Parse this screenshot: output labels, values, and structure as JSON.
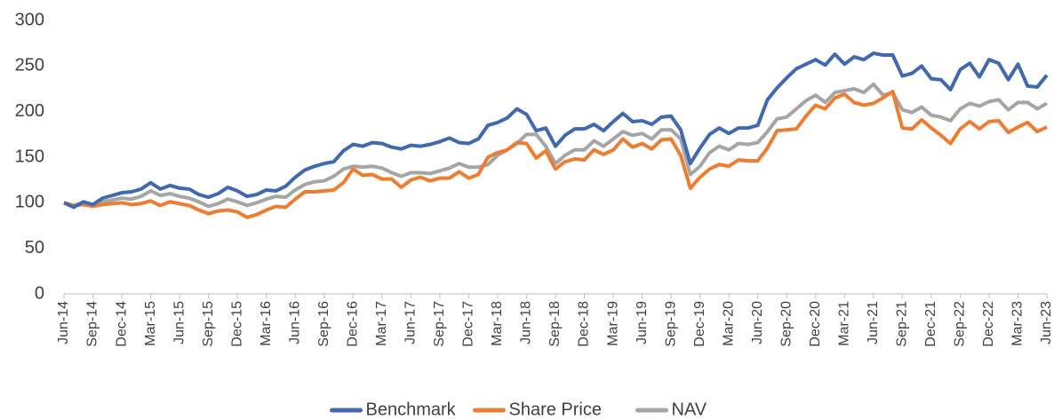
{
  "chart_data": {
    "type": "line",
    "categories": [
      "Jun-14",
      null,
      null,
      "Sep-14",
      null,
      null,
      "Dec-14",
      null,
      null,
      "Mar-15",
      null,
      null,
      "Jun-15",
      null,
      null,
      "Sep-15",
      null,
      null,
      "Dec-15",
      null,
      null,
      "Mar-16",
      null,
      null,
      "Jun-16",
      null,
      null,
      "Sep-16",
      null,
      null,
      "Dec-16",
      null,
      null,
      "Mar-17",
      null,
      null,
      "Jun-17",
      null,
      null,
      "Sep-17",
      null,
      null,
      "Dec-17",
      null,
      null,
      "Mar-18",
      null,
      null,
      "Jun-18",
      null,
      null,
      "Sep-18",
      null,
      null,
      "Dec-18",
      null,
      null,
      "Mar-19",
      null,
      null,
      "Jun-19",
      null,
      null,
      "Sep-19",
      null,
      null,
      "Dec-19",
      null,
      null,
      "Mar-20",
      null,
      null,
      "Jun-20",
      null,
      null,
      "Sep-20",
      null,
      null,
      "Dec-20",
      null,
      null,
      "Mar-21",
      null,
      null,
      "Jun-21",
      null,
      null,
      "Sep-21",
      null,
      null,
      "Dec-21",
      null,
      null,
      "Sep-22",
      null,
      null,
      "Dec-22",
      null,
      null,
      "Mar-23",
      null,
      null,
      "Jun-23"
    ],
    "series": [
      {
        "name": "Benchmark",
        "color": "#4169b0",
        "values": [
          100,
          95,
          101,
          98,
          105,
          108,
          111,
          112,
          115,
          122,
          115,
          119,
          116,
          115,
          109,
          106,
          110,
          117,
          113,
          107,
          109,
          114,
          113,
          118,
          128,
          136,
          140,
          143,
          145,
          157,
          164,
          162,
          166,
          165,
          161,
          159,
          163,
          162,
          164,
          167,
          171,
          166,
          165,
          170,
          185,
          188,
          193,
          203,
          197,
          179,
          182,
          162,
          174,
          181,
          181,
          186,
          179,
          189,
          198,
          189,
          190,
          186,
          194,
          195,
          180,
          143,
          160,
          175,
          182,
          176,
          182,
          182,
          185,
          213,
          226,
          237,
          247,
          252,
          257,
          251,
          263,
          252,
          260,
          257,
          264,
          262,
          262,
          239,
          242,
          250,
          236,
          235,
          224,
          246,
          253,
          238,
          257,
          253,
          235,
          252,
          228,
          227,
          240
        ]
      },
      {
        "name": "Share Price",
        "color": "#ed7d31",
        "values": [
          100,
          97,
          98,
          96,
          98,
          99,
          100,
          98,
          99,
          102,
          97,
          101,
          99,
          97,
          92,
          88,
          91,
          92,
          90,
          84,
          87,
          92,
          96,
          95,
          104,
          112,
          112,
          113,
          114,
          122,
          137,
          130,
          131,
          126,
          126,
          117,
          125,
          128,
          124,
          127,
          127,
          134,
          127,
          131,
          150,
          155,
          158,
          166,
          165,
          149,
          157,
          137,
          145,
          148,
          147,
          158,
          153,
          158,
          170,
          161,
          165,
          159,
          169,
          170,
          152,
          116,
          128,
          137,
          142,
          140,
          147,
          146,
          146,
          160,
          179,
          180,
          181,
          195,
          207,
          203,
          215,
          219,
          210,
          207,
          209,
          215,
          222,
          182,
          181,
          191,
          182,
          174,
          165,
          181,
          189,
          181,
          189,
          190,
          177,
          183,
          188,
          178,
          183
        ]
      },
      {
        "name": "NAV",
        "color": "#a5a5a5",
        "values": [
          100,
          97,
          100,
          98,
          101,
          103,
          105,
          104,
          107,
          113,
          108,
          110,
          107,
          105,
          101,
          96,
          99,
          104,
          101,
          97,
          100,
          104,
          107,
          106,
          114,
          120,
          123,
          124,
          129,
          137,
          140,
          139,
          140,
          138,
          133,
          129,
          133,
          133,
          132,
          135,
          138,
          143,
          139,
          139,
          142,
          152,
          158,
          165,
          175,
          175,
          162,
          143,
          152,
          158,
          158,
          168,
          162,
          170,
          178,
          174,
          176,
          170,
          180,
          180,
          170,
          131,
          140,
          155,
          162,
          158,
          165,
          164,
          166,
          178,
          192,
          194,
          203,
          212,
          218,
          210,
          221,
          223,
          225,
          221,
          230,
          218,
          221,
          202,
          199,
          205,
          196,
          194,
          190,
          203,
          209,
          206,
          211,
          213,
          202,
          210,
          210,
          203,
          209
        ]
      }
    ],
    "ylim": [
      0,
      300
    ],
    "yticks": [
      0,
      50,
      100,
      150,
      200,
      250,
      300
    ],
    "grid": false,
    "legend": "bottom"
  }
}
